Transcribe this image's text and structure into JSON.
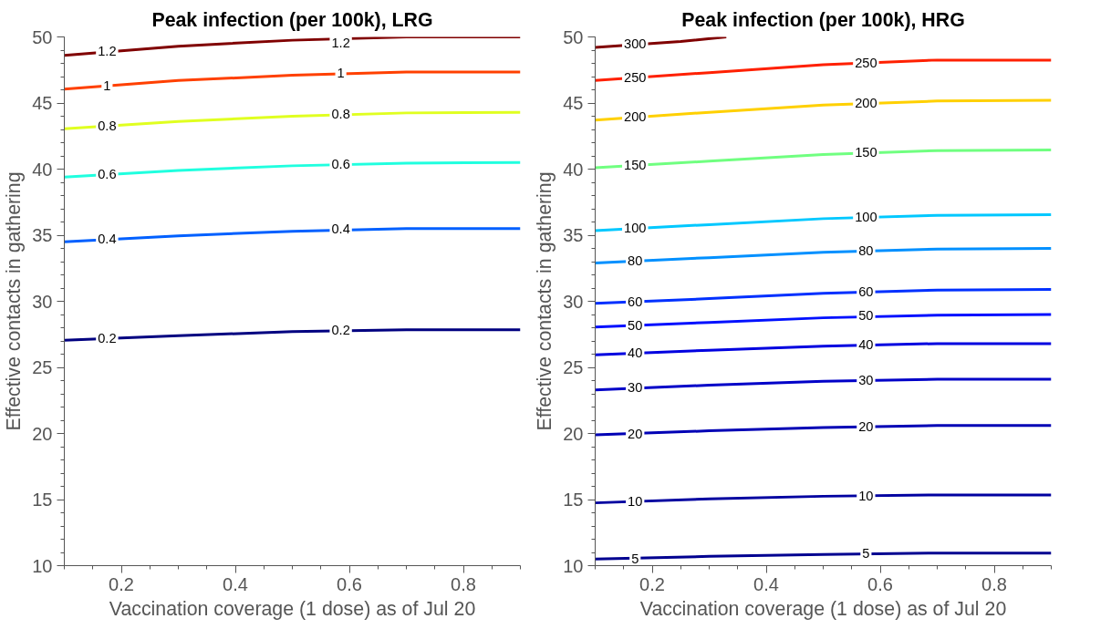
{
  "chart_data": [
    {
      "type": "line",
      "title": "Peak infection (per 100k), LRG",
      "xlabel": "Vaccination coverage (1 dose) as of Jul 20",
      "ylabel": "Effective contacts in gathering",
      "xlim": [
        0.1,
        0.9
      ],
      "xticks": [
        0.2,
        0.4,
        0.6,
        0.8
      ],
      "ylim": [
        10,
        50
      ],
      "yticks": [
        10,
        15,
        20,
        25,
        30,
        35,
        40,
        45,
        50
      ],
      "grid": false,
      "marker": "none",
      "line_style": "solid",
      "x": [
        0.1,
        0.3,
        0.5,
        0.7,
        0.9
      ],
      "series": [
        {
          "color": "#000080",
          "values": [
            27.05,
            27.4,
            27.7,
            27.85,
            27.85
          ]
        },
        {
          "color": "#0060ff",
          "values": [
            34.5,
            34.95,
            35.3,
            35.5,
            35.5
          ]
        },
        {
          "color": "#20ffdf",
          "values": [
            39.4,
            39.9,
            40.25,
            40.45,
            40.5
          ]
        },
        {
          "color": "#e0ff20",
          "values": [
            43.05,
            43.6,
            44.0,
            44.25,
            44.3
          ]
        },
        {
          "color": "#ff4000",
          "values": [
            46.05,
            46.7,
            47.1,
            47.35,
            47.35
          ]
        },
        {
          "color": "#800000",
          "values": [
            48.6,
            49.3,
            49.75,
            50.0,
            50.0
          ]
        }
      ],
      "annotations": [
        {
          "text": "0.2",
          "x": 0.175,
          "y": 27.2
        },
        {
          "text": "0.2",
          "x": 0.585,
          "y": 27.8
        },
        {
          "text": "0.4",
          "x": 0.175,
          "y": 34.7
        },
        {
          "text": "0.4",
          "x": 0.585,
          "y": 35.45
        },
        {
          "text": "0.6",
          "x": 0.175,
          "y": 39.6
        },
        {
          "text": "0.6",
          "x": 0.585,
          "y": 40.4
        },
        {
          "text": "0.8",
          "x": 0.175,
          "y": 43.3
        },
        {
          "text": "0.8",
          "x": 0.585,
          "y": 44.15
        },
        {
          "text": "1",
          "x": 0.175,
          "y": 46.3
        },
        {
          "text": "1",
          "x": 0.585,
          "y": 47.25
        },
        {
          "text": "1.2",
          "x": 0.175,
          "y": 48.9
        },
        {
          "text": "1.2",
          "x": 0.585,
          "y": 49.55
        }
      ]
    },
    {
      "type": "line",
      "title": "Peak infection (per 100k), HRG",
      "xlabel": "Vaccination coverage (1 dose) as of Jul 20",
      "ylabel": "Effective contacts in gathering",
      "xlim": [
        0.1,
        0.9
      ],
      "xticks": [
        0.2,
        0.4,
        0.6,
        0.8
      ],
      "ylim": [
        10,
        50
      ],
      "yticks": [
        10,
        15,
        20,
        25,
        30,
        35,
        40,
        45,
        50
      ],
      "grid": false,
      "marker": "none",
      "line_style": "solid",
      "x": [
        0.1,
        0.3,
        0.5,
        0.7,
        0.9
      ],
      "series": [
        {
          "color": "#000090",
          "values": [
            10.5,
            10.7,
            10.85,
            10.95,
            10.95
          ]
        },
        {
          "color": "#0000a0",
          "values": [
            14.75,
            15.05,
            15.25,
            15.35,
            15.35
          ]
        },
        {
          "color": "#0000b5",
          "values": [
            19.9,
            20.2,
            20.45,
            20.6,
            20.6
          ]
        },
        {
          "color": "#0000c8",
          "values": [
            23.3,
            23.65,
            23.95,
            24.1,
            24.1
          ]
        },
        {
          "color": "#0000e0",
          "values": [
            25.95,
            26.3,
            26.6,
            26.8,
            26.8
          ]
        },
        {
          "color": "#0010ff",
          "values": [
            28.05,
            28.4,
            28.75,
            28.95,
            29.0
          ]
        },
        {
          "color": "#0030ff",
          "values": [
            29.85,
            30.2,
            30.6,
            30.85,
            30.9
          ]
        },
        {
          "color": "#0090ff",
          "values": [
            32.9,
            33.3,
            33.7,
            33.95,
            34.0
          ]
        },
        {
          "color": "#00c8ff",
          "values": [
            35.35,
            35.8,
            36.25,
            36.5,
            36.55
          ]
        },
        {
          "color": "#70ff80",
          "values": [
            40.1,
            40.6,
            41.1,
            41.4,
            41.45
          ]
        },
        {
          "color": "#ffd000",
          "values": [
            43.7,
            44.3,
            44.85,
            45.15,
            45.2
          ]
        },
        {
          "color": "#ff2000",
          "values": [
            46.7,
            47.3,
            47.9,
            48.25,
            48.25
          ]
        },
        {
          "color": "#800000",
          "x": [
            0.1,
            0.25,
            0.33
          ],
          "values": [
            49.2,
            49.65,
            50.0
          ]
        }
      ],
      "annotations": [
        {
          "text": "5",
          "x": 0.17,
          "y": 10.55
        },
        {
          "text": "5",
          "x": 0.575,
          "y": 10.9
        },
        {
          "text": "10",
          "x": 0.17,
          "y": 14.85
        },
        {
          "text": "10",
          "x": 0.575,
          "y": 15.3
        },
        {
          "text": "20",
          "x": 0.17,
          "y": 20.0
        },
        {
          "text": "20",
          "x": 0.575,
          "y": 20.55
        },
        {
          "text": "30",
          "x": 0.17,
          "y": 23.45
        },
        {
          "text": "30",
          "x": 0.575,
          "y": 24.05
        },
        {
          "text": "40",
          "x": 0.17,
          "y": 26.1
        },
        {
          "text": "40",
          "x": 0.575,
          "y": 26.7
        },
        {
          "text": "50",
          "x": 0.17,
          "y": 28.2
        },
        {
          "text": "50",
          "x": 0.575,
          "y": 28.9
        },
        {
          "text": "60",
          "x": 0.17,
          "y": 30.0
        },
        {
          "text": "60",
          "x": 0.575,
          "y": 30.75
        },
        {
          "text": "80",
          "x": 0.17,
          "y": 33.05
        },
        {
          "text": "80",
          "x": 0.575,
          "y": 33.85
        },
        {
          "text": "100",
          "x": 0.17,
          "y": 35.55
        },
        {
          "text": "100",
          "x": 0.575,
          "y": 36.4
        },
        {
          "text": "150",
          "x": 0.17,
          "y": 40.3
        },
        {
          "text": "150",
          "x": 0.575,
          "y": 41.25
        },
        {
          "text": "200",
          "x": 0.17,
          "y": 43.95
        },
        {
          "text": "200",
          "x": 0.575,
          "y": 45.0
        },
        {
          "text": "250",
          "x": 0.17,
          "y": 46.95
        },
        {
          "text": "250",
          "x": 0.575,
          "y": 48.05
        },
        {
          "text": "300",
          "x": 0.17,
          "y": 49.45
        }
      ]
    }
  ]
}
